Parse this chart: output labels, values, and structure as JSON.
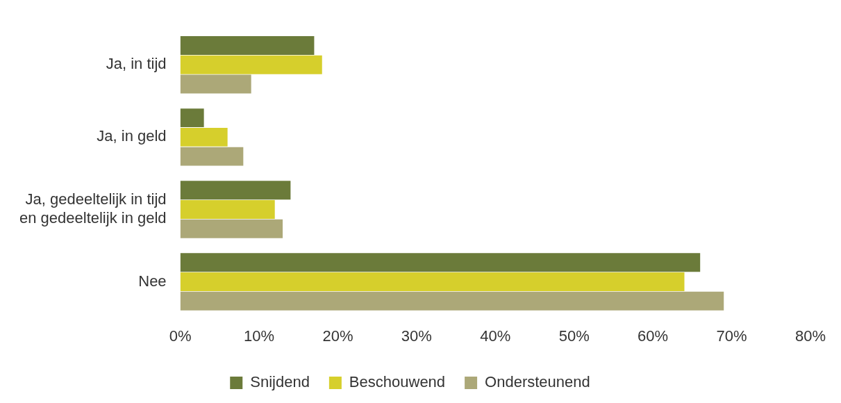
{
  "chart_data": {
    "type": "bar",
    "orientation": "horizontal",
    "categories": [
      "Ja, in tijd",
      "Ja, in geld",
      "Ja, gedeeltelijk in tijd\nen gedeeltelijk in geld",
      "Nee"
    ],
    "series": [
      {
        "name": "Snijdend",
        "color": "#6b7b3a",
        "values": [
          17,
          3,
          14,
          66
        ]
      },
      {
        "name": "Beschouwend",
        "color": "#d6cf2c",
        "values": [
          18,
          6,
          12,
          64
        ]
      },
      {
        "name": "Ondersteunend",
        "color": "#aca878",
        "values": [
          9,
          8,
          13,
          69
        ]
      }
    ],
    "xlim": [
      0,
      80
    ],
    "xticks": [
      {
        "value": 0,
        "label": "0%"
      },
      {
        "value": 10,
        "label": "10%"
      },
      {
        "value": 20,
        "label": "20%"
      },
      {
        "value": 30,
        "label": "30%"
      },
      {
        "value": 40,
        "label": "40%"
      },
      {
        "value": 50,
        "label": "50%"
      },
      {
        "value": 60,
        "label": "60%"
      },
      {
        "value": 70,
        "label": "70%"
      },
      {
        "value": 80,
        "label": "80%"
      }
    ],
    "grid": false,
    "legend": "bottom"
  }
}
